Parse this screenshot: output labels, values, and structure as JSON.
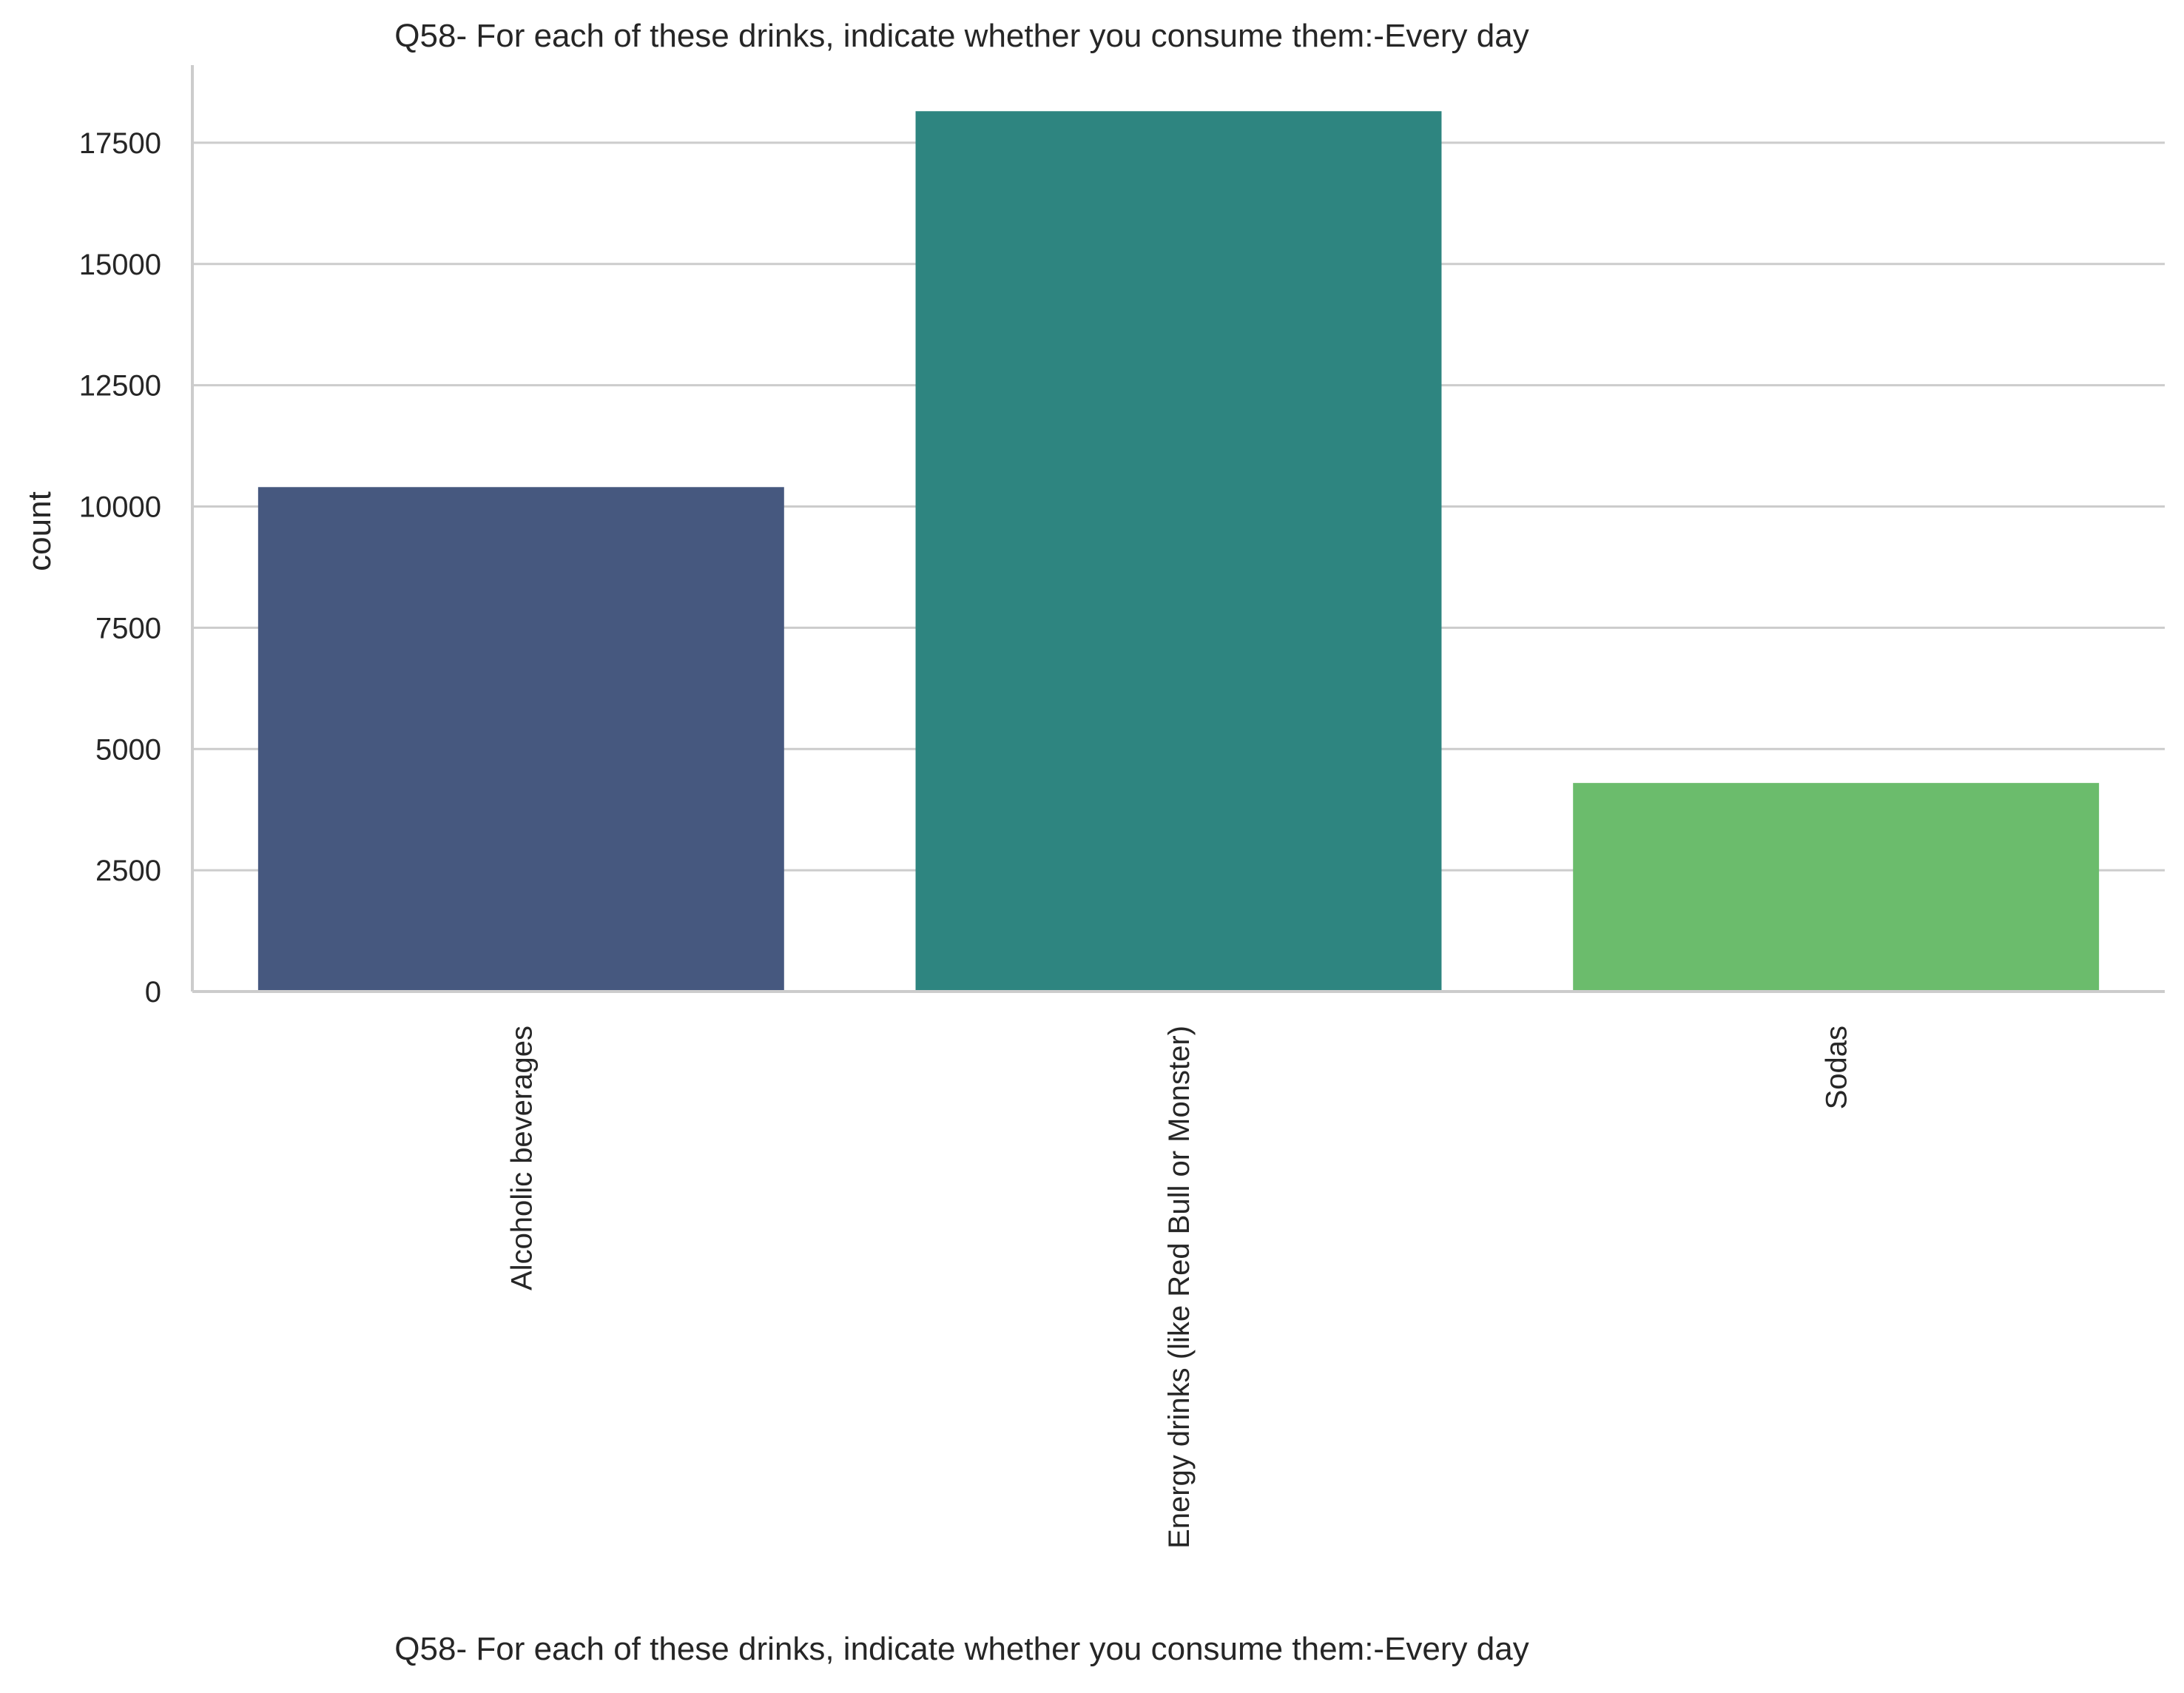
{
  "chart_data": {
    "type": "bar",
    "title": "Q58- For each of these drinks, indicate whether you consume them:-Every day",
    "xlabel": "Q58- For each of these drinks, indicate whether you consume them:-Every day",
    "ylabel": "count",
    "categories": [
      "Alcoholic beverages",
      "Energy drinks (like Red Bull or Monster)",
      "Sodas"
    ],
    "values": [
      10400,
      18150,
      4300
    ],
    "colors": [
      "#46587f",
      "#2e8580",
      "#6bbc6c"
    ],
    "ylim": [
      0,
      19100
    ],
    "yticks": [
      0,
      2500,
      5000,
      7500,
      10000,
      12500,
      15000,
      17500
    ],
    "ytick_labels": [
      "0",
      "2500",
      "5000",
      "7500",
      "10000",
      "12500",
      "15000",
      "17500"
    ],
    "grid": "horizontal",
    "grid_color": "#cccccc",
    "spine_color": "#cccccc",
    "background": "#ffffff",
    "legend": "none"
  }
}
